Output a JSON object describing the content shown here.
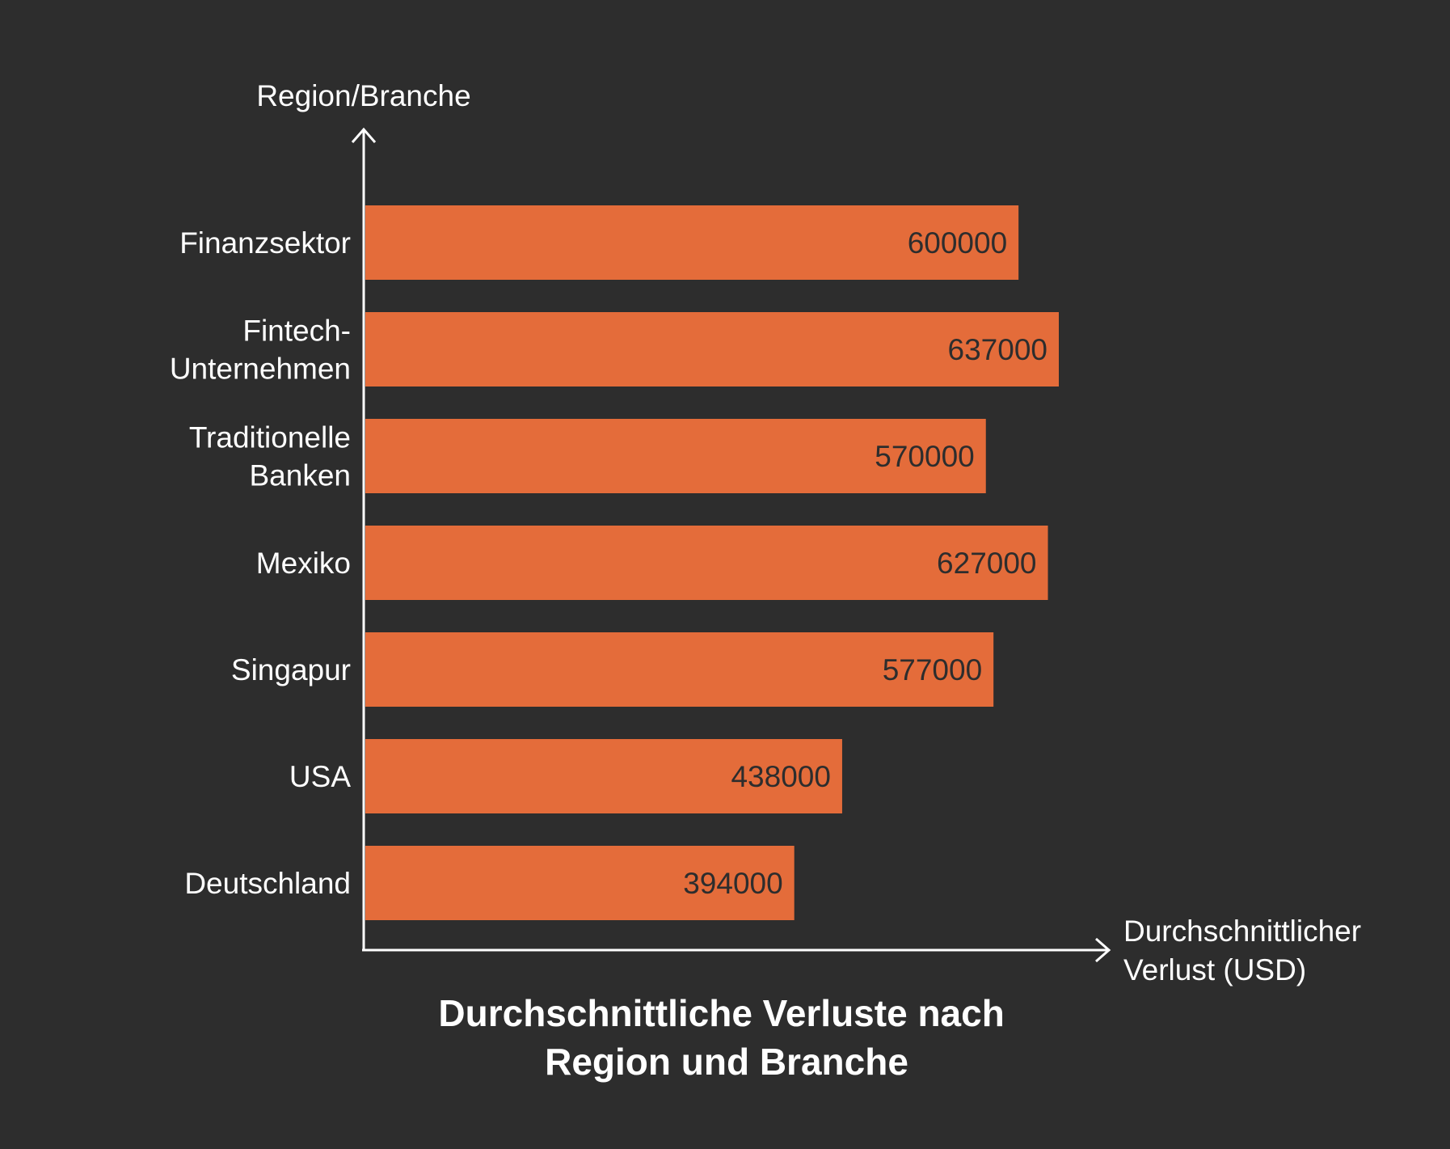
{
  "chart_data": {
    "type": "bar",
    "orientation": "horizontal",
    "title_lines": [
      "Durchschnittliche Verluste nach",
      "Region und Branche"
    ],
    "ylabel": "Region/Branche",
    "xlabel_lines": [
      "Durchschnittlicher",
      "Verlust (USD)"
    ],
    "categories": [
      [
        "Finanzsektor"
      ],
      [
        "Fintech-",
        "Unternehmen"
      ],
      [
        "Traditionelle",
        "Banken"
      ],
      [
        "Mexiko"
      ],
      [
        "Singapur"
      ],
      [
        "USA"
      ],
      [
        "Deutschland"
      ]
    ],
    "values": [
      600000,
      637000,
      570000,
      627000,
      577000,
      438000,
      394000
    ],
    "data_labels": [
      "600000",
      "637000",
      "570000",
      "627000",
      "577000",
      "438000",
      "394000"
    ],
    "xlim": [
      0,
      637000
    ],
    "grid": false,
    "legend": "none"
  },
  "colors": {
    "background": "#2d2d2d",
    "bar": "#e46c3a",
    "text": "#ffffff",
    "value_label": "#2d2d2d",
    "axis": "#ffffff"
  }
}
